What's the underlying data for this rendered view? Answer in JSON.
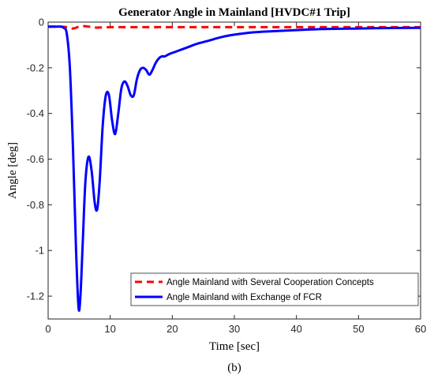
{
  "chart_data": {
    "type": "line",
    "title": "Generator Angle in Mainland [HVDC#1 Trip]",
    "xlabel": "Time [sec]",
    "ylabel": "Angle [deg]",
    "xlim": [
      0,
      60
    ],
    "ylim": [
      -1.3,
      0
    ],
    "xticks": [
      0,
      10,
      20,
      30,
      40,
      50,
      60
    ],
    "yticks": [
      0,
      -0.2,
      -0.4,
      -0.6,
      -0.8,
      -1,
      -1.2
    ],
    "xtick_labels": [
      "0",
      "10",
      "20",
      "30",
      "40",
      "50",
      "60"
    ],
    "ytick_labels": [
      "0",
      "-0.2",
      "-0.4",
      "-0.6",
      "-0.8",
      "-1",
      "-1.2"
    ],
    "grid": false,
    "legend_position": "bottom-right",
    "caption": "(b)",
    "series": [
      {
        "name": "Angle Mainland with Several Cooperation Concepts",
        "color": "#ff0000",
        "style": "dashed",
        "x": [
          0,
          2,
          3,
          4,
          5,
          6,
          7,
          8,
          10,
          15,
          20,
          30,
          40,
          50,
          60
        ],
        "y": [
          -0.02,
          -0.02,
          -0.022,
          -0.028,
          -0.02,
          -0.018,
          -0.022,
          -0.024,
          -0.022,
          -0.022,
          -0.022,
          -0.022,
          -0.022,
          -0.022,
          -0.022
        ]
      },
      {
        "name": "Angle Mainland with Exchange of FCR",
        "color": "#0000ff",
        "style": "solid",
        "x": [
          0,
          1,
          2,
          2.5,
          3,
          3.5,
          4,
          4.5,
          4.9,
          5.2,
          5.6,
          6,
          6.5,
          7,
          7.5,
          7.9,
          8.3,
          8.8,
          9.3,
          9.8,
          10.3,
          10.8,
          11.3,
          11.8,
          12.3,
          12.8,
          13.3,
          13.8,
          14.3,
          14.8,
          15.3,
          15.8,
          16.3,
          16.8,
          17.3,
          17.8,
          18.3,
          18.8,
          19.5,
          20.5,
          21.5,
          22.5,
          24,
          26,
          28,
          30,
          33,
          36,
          40,
          45,
          50,
          55,
          60
        ],
        "y": [
          -0.02,
          -0.02,
          -0.02,
          -0.025,
          -0.05,
          -0.2,
          -0.55,
          -1.0,
          -1.25,
          -1.2,
          -0.95,
          -0.7,
          -0.59,
          -0.65,
          -0.79,
          -0.82,
          -0.7,
          -0.45,
          -0.32,
          -0.32,
          -0.43,
          -0.49,
          -0.4,
          -0.29,
          -0.26,
          -0.28,
          -0.32,
          -0.32,
          -0.25,
          -0.21,
          -0.2,
          -0.21,
          -0.23,
          -0.21,
          -0.18,
          -0.16,
          -0.15,
          -0.15,
          -0.14,
          -0.13,
          -0.12,
          -0.11,
          -0.095,
          -0.08,
          -0.065,
          -0.055,
          -0.045,
          -0.04,
          -0.035,
          -0.03,
          -0.028,
          -0.026,
          -0.025
        ]
      }
    ]
  }
}
